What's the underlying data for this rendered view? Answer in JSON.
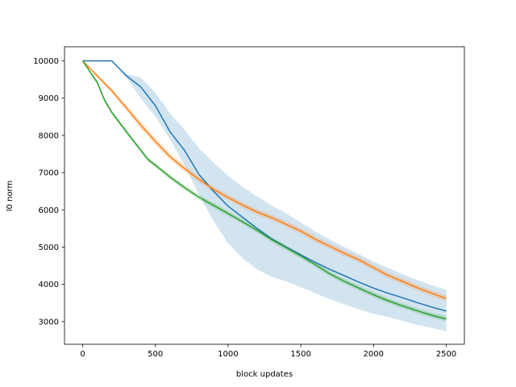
{
  "chart_data": {
    "type": "line",
    "title": "",
    "xlabel": "block updates",
    "ylabel": "l0 norm",
    "xlim": [
      -125,
      2625
    ],
    "ylim": [
      2390,
      10380
    ],
    "xticks": [
      0,
      500,
      1000,
      1500,
      2000,
      2500
    ],
    "yticks": [
      3000,
      4000,
      5000,
      6000,
      7000,
      8000,
      9000,
      10000
    ],
    "grid": false,
    "legend": "none",
    "series": [
      {
        "color": "#1f77b4",
        "x": [
          0,
          200,
          300,
          400,
          500,
          600,
          700,
          800,
          900,
          1000,
          1100,
          1200,
          1300,
          1400,
          1500,
          1600,
          1700,
          1800,
          1900,
          2000,
          2100,
          2200,
          2300,
          2400,
          2500
        ],
        "y": [
          10000,
          10000,
          9600,
          9300,
          8800,
          8100,
          7600,
          6950,
          6500,
          6100,
          5800,
          5500,
          5220,
          5000,
          4790,
          4590,
          4400,
          4230,
          4060,
          3900,
          3760,
          3640,
          3510,
          3390,
          3280
        ],
        "lower": [
          10000,
          10000,
          9550,
          9000,
          8500,
          7900,
          7200,
          6400,
          5700,
          5100,
          4700,
          4400,
          4200,
          4080,
          3920,
          3760,
          3600,
          3460,
          3330,
          3210,
          3120,
          3020,
          2910,
          2830,
          2740
        ],
        "upper": [
          10000,
          10000,
          9650,
          9550,
          9150,
          8600,
          8150,
          7650,
          7270,
          6910,
          6620,
          6360,
          6120,
          5900,
          5660,
          5420,
          5200,
          5000,
          4810,
          4610,
          4440,
          4270,
          4120,
          3980,
          3850
        ]
      },
      {
        "color": "#ff7f0e",
        "x": [
          0,
          100,
          200,
          300,
          400,
          500,
          600,
          700,
          800,
          900,
          1000,
          1100,
          1200,
          1300,
          1400,
          1500,
          1600,
          1700,
          1800,
          1900,
          2000,
          2100,
          2200,
          2300,
          2400,
          2500
        ],
        "y": [
          10000,
          9600,
          9200,
          8740,
          8270,
          7840,
          7430,
          7110,
          6820,
          6550,
          6330,
          6130,
          5940,
          5790,
          5610,
          5430,
          5210,
          5020,
          4830,
          4660,
          4450,
          4240,
          4080,
          3910,
          3760,
          3620
        ],
        "lower": [
          10000,
          9560,
          9140,
          8660,
          8170,
          7740,
          7340,
          7020,
          6740,
          6470,
          6250,
          6050,
          5860,
          5710,
          5530,
          5350,
          5130,
          4940,
          4750,
          4580,
          4370,
          4160,
          4000,
          3830,
          3680,
          3540
        ],
        "upper": [
          10000,
          9640,
          9260,
          8820,
          8370,
          7940,
          7520,
          7200,
          6900,
          6630,
          6410,
          6210,
          6020,
          5870,
          5690,
          5510,
          5290,
          5100,
          4910,
          4740,
          4530,
          4320,
          4160,
          3990,
          3840,
          3700
        ]
      },
      {
        "color": "#2ca02c",
        "x": [
          0,
          100,
          150,
          200,
          300,
          400,
          450,
          500,
          600,
          700,
          800,
          900,
          1000,
          1100,
          1200,
          1300,
          1400,
          1500,
          1600,
          1700,
          1800,
          1900,
          2000,
          2100,
          2200,
          2300,
          2400,
          2500
        ],
        "y": [
          10000,
          9420,
          8950,
          8620,
          8100,
          7600,
          7350,
          7200,
          6880,
          6600,
          6340,
          6120,
          5900,
          5680,
          5450,
          5200,
          4980,
          4760,
          4530,
          4280,
          4080,
          3900,
          3720,
          3560,
          3420,
          3290,
          3170,
          3070
        ],
        "lower": [
          10000,
          9370,
          8890,
          8560,
          8040,
          7540,
          7290,
          7140,
          6810,
          6530,
          6270,
          6050,
          5830,
          5610,
          5380,
          5130,
          4910,
          4690,
          4460,
          4210,
          4010,
          3830,
          3650,
          3490,
          3350,
          3220,
          3100,
          3000
        ],
        "upper": [
          10000,
          9470,
          9010,
          8680,
          8160,
          7660,
          7410,
          7260,
          6950,
          6670,
          6410,
          6190,
          5970,
          5750,
          5520,
          5270,
          5050,
          4830,
          4600,
          4350,
          4150,
          3970,
          3790,
          3630,
          3490,
          3360,
          3240,
          3140
        ]
      }
    ]
  }
}
